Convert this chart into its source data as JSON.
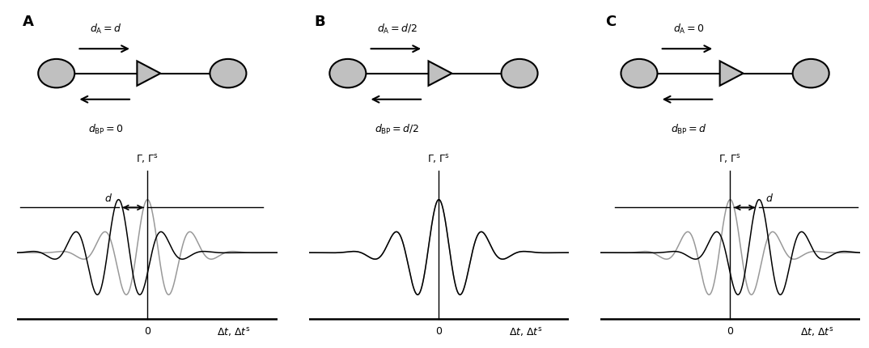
{
  "background_color": "#ffffff",
  "curve_color_soma": "#999999",
  "curve_color_synapse": "#000000",
  "node_fill": "#c0c0c0",
  "freq_pi": 1.3,
  "sigma": 1.1,
  "delay_d": 1.0,
  "x_range": [
    -4.5,
    4.5
  ],
  "panels": [
    {
      "letter": "A",
      "dA_text": "d_A = d",
      "dBP_text": "d_BP = 0",
      "shift_synapse": -1.0,
      "shift_soma": 0.0,
      "arrow": "A"
    },
    {
      "letter": "B",
      "dA_text": "d_A = d/2",
      "dBP_text": "d_BP = d/2",
      "shift_synapse": 0.0,
      "shift_soma": 0.0,
      "arrow": null
    },
    {
      "letter": "C",
      "dA_text": "d_A = 0",
      "dBP_text": "d_BP = d",
      "shift_synapse": 1.0,
      "shift_soma": 0.0,
      "arrow": "C"
    }
  ]
}
